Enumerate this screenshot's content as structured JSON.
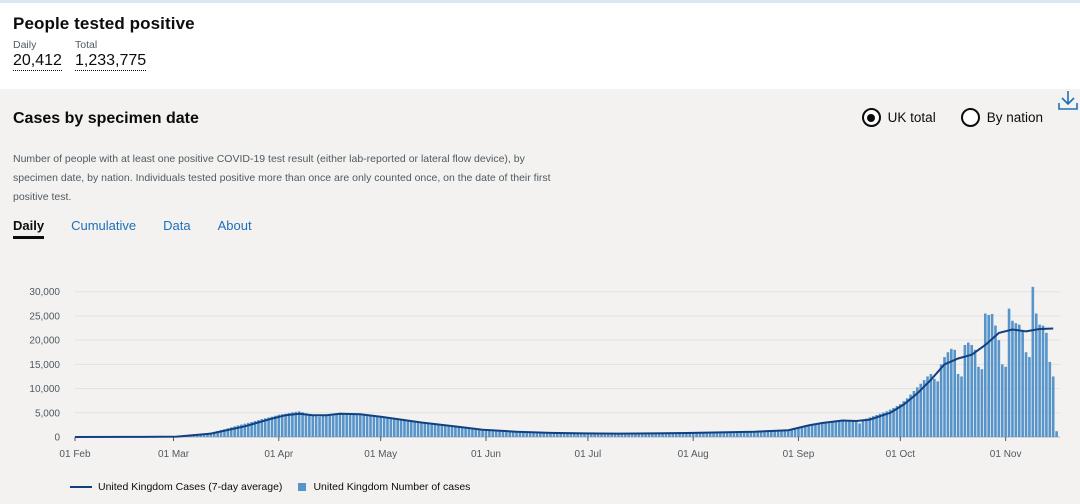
{
  "summary": {
    "title": "People tested positive",
    "daily": {
      "label": "Daily",
      "value": "20,412"
    },
    "total": {
      "label": "Total",
      "value": "1,233,775"
    }
  },
  "card": {
    "title": "Cases by specimen date",
    "download_icon": "download-icon",
    "radios": [
      {
        "label": "UK total",
        "checked": true
      },
      {
        "label": "By nation",
        "checked": false
      }
    ],
    "description": "Number of people with at least one positive COVID-19 test result (either lab-reported or lateral flow device), by specimen date, by nation. Individuals tested positive more than once are only counted once, on the date of their first positive test.",
    "tabs": [
      {
        "label": "Daily",
        "active": true
      },
      {
        "label": "Cumulative",
        "active": false
      },
      {
        "label": "Data",
        "active": false
      },
      {
        "label": "About",
        "active": false
      }
    ]
  },
  "colors": {
    "bar": "#5694ca",
    "line": "#12407f",
    "link": "#1d70b8",
    "panel": "#f3f2f1"
  },
  "chart_data": {
    "type": "bar",
    "title": "",
    "xlabel": "",
    "ylabel": "",
    "ylim": [
      0,
      32000
    ],
    "yticks": [
      0,
      5000,
      10000,
      15000,
      20000,
      25000,
      30000
    ],
    "ytick_labels": [
      "0",
      "5,000",
      "10,000",
      "15,000",
      "20,000",
      "25,000",
      "30,000"
    ],
    "x_start": "01 Feb",
    "xticks": [
      {
        "label": "01 Feb",
        "day": 0
      },
      {
        "label": "01 Mar",
        "day": 29
      },
      {
        "label": "01 Apr",
        "day": 60
      },
      {
        "label": "01 May",
        "day": 90
      },
      {
        "label": "01 Jun",
        "day": 121
      },
      {
        "label": "01 Jul",
        "day": 151
      },
      {
        "label": "01 Aug",
        "day": 182
      },
      {
        "label": "01 Sep",
        "day": 213
      },
      {
        "label": "01 Oct",
        "day": 243
      },
      {
        "label": "01 Nov",
        "day": 274
      }
    ],
    "series": [
      {
        "name": "United Kingdom Number of cases",
        "kind": "bar",
        "points": [
          [
            0,
            2
          ],
          [
            5,
            5
          ],
          [
            10,
            8
          ],
          [
            15,
            15
          ],
          [
            20,
            25
          ],
          [
            25,
            40
          ],
          [
            29,
            80
          ],
          [
            33,
            200
          ],
          [
            36,
            400
          ],
          [
            40,
            900
          ],
          [
            44,
            1600
          ],
          [
            48,
            2400
          ],
          [
            52,
            3100
          ],
          [
            55,
            3700
          ],
          [
            58,
            4200
          ],
          [
            60,
            4600
          ],
          [
            62,
            4800
          ],
          [
            64,
            5100
          ],
          [
            66,
            5300
          ],
          [
            68,
            4900
          ],
          [
            70,
            4400
          ],
          [
            72,
            4200
          ],
          [
            74,
            4600
          ],
          [
            76,
            4700
          ],
          [
            78,
            5000
          ],
          [
            80,
            4900
          ],
          [
            82,
            4700
          ],
          [
            84,
            4800
          ],
          [
            86,
            4600
          ],
          [
            88,
            4500
          ],
          [
            90,
            4300
          ],
          [
            92,
            4000
          ],
          [
            94,
            3700
          ],
          [
            96,
            3600
          ],
          [
            98,
            3400
          ],
          [
            100,
            3200
          ],
          [
            102,
            3000
          ],
          [
            104,
            2900
          ],
          [
            106,
            2700
          ],
          [
            108,
            2500
          ],
          [
            110,
            2300
          ],
          [
            112,
            2100
          ],
          [
            114,
            1900
          ],
          [
            116,
            1700
          ],
          [
            118,
            1500
          ],
          [
            120,
            1350
          ],
          [
            123,
            1200
          ],
          [
            126,
            1100
          ],
          [
            129,
            1000
          ],
          [
            132,
            950
          ],
          [
            135,
            900
          ],
          [
            138,
            850
          ],
          [
            141,
            800
          ],
          [
            144,
            780
          ],
          [
            147,
            760
          ],
          [
            150,
            740
          ],
          [
            153,
            720
          ],
          [
            156,
            700
          ],
          [
            159,
            700
          ],
          [
            162,
            700
          ],
          [
            165,
            720
          ],
          [
            168,
            740
          ],
          [
            171,
            760
          ],
          [
            174,
            780
          ],
          [
            177,
            800
          ],
          [
            180,
            850
          ],
          [
            183,
            900
          ],
          [
            186,
            950
          ],
          [
            189,
            1000
          ],
          [
            192,
            1000
          ],
          [
            195,
            1050
          ],
          [
            198,
            1100
          ],
          [
            201,
            1150
          ],
          [
            204,
            1200
          ],
          [
            207,
            1300
          ],
          [
            210,
            1500
          ],
          [
            213,
            1900
          ],
          [
            215,
            2300
          ],
          [
            217,
            2700
          ],
          [
            219,
            2900
          ],
          [
            221,
            3100
          ],
          [
            223,
            3300
          ],
          [
            225,
            3400
          ],
          [
            227,
            3500
          ],
          [
            229,
            3400
          ],
          [
            231,
            2800
          ],
          [
            233,
            3800
          ],
          [
            235,
            4300
          ],
          [
            237,
            4800
          ],
          [
            239,
            5300
          ],
          [
            241,
            6000
          ],
          [
            243,
            6800
          ],
          [
            245,
            8000
          ],
          [
            247,
            9500
          ],
          [
            249,
            11000
          ],
          [
            251,
            12500
          ],
          [
            252,
            13000
          ],
          [
            253,
            12000
          ],
          [
            254,
            11500
          ],
          [
            255,
            15000
          ],
          [
            256,
            16500
          ],
          [
            257,
            17500
          ],
          [
            258,
            18200
          ],
          [
            259,
            18000
          ],
          [
            260,
            13000
          ],
          [
            261,
            12500
          ],
          [
            262,
            19000
          ],
          [
            263,
            19500
          ],
          [
            264,
            19000
          ],
          [
            265,
            18000
          ],
          [
            266,
            14500
          ],
          [
            267,
            14000
          ],
          [
            268,
            25500
          ],
          [
            269,
            25200
          ],
          [
            270,
            25400
          ],
          [
            271,
            23000
          ],
          [
            272,
            20000
          ],
          [
            273,
            15000
          ],
          [
            274,
            14500
          ],
          [
            275,
            26500
          ],
          [
            276,
            24000
          ],
          [
            277,
            23500
          ],
          [
            278,
            23200
          ],
          [
            279,
            22000
          ],
          [
            280,
            17500
          ],
          [
            281,
            16500
          ],
          [
            282,
            31000
          ],
          [
            283,
            25500
          ],
          [
            284,
            23200
          ],
          [
            285,
            23000
          ],
          [
            286,
            21500
          ],
          [
            287,
            15500
          ],
          [
            288,
            12500
          ],
          [
            289,
            1200
          ]
        ]
      },
      {
        "name": "United Kingdom Cases (7-day average)",
        "kind": "line",
        "points": [
          [
            0,
            0
          ],
          [
            20,
            30
          ],
          [
            30,
            80
          ],
          [
            40,
            700
          ],
          [
            50,
            2200
          ],
          [
            58,
            3800
          ],
          [
            62,
            4500
          ],
          [
            66,
            4800
          ],
          [
            70,
            4500
          ],
          [
            74,
            4500
          ],
          [
            78,
            4800
          ],
          [
            84,
            4700
          ],
          [
            90,
            4200
          ],
          [
            96,
            3600
          ],
          [
            102,
            3000
          ],
          [
            108,
            2500
          ],
          [
            114,
            2000
          ],
          [
            120,
            1500
          ],
          [
            130,
            1100
          ],
          [
            140,
            850
          ],
          [
            150,
            750
          ],
          [
            160,
            700
          ],
          [
            170,
            740
          ],
          [
            180,
            820
          ],
          [
            190,
            950
          ],
          [
            200,
            1100
          ],
          [
            210,
            1400
          ],
          [
            216,
            2400
          ],
          [
            220,
            2900
          ],
          [
            226,
            3400
          ],
          [
            230,
            3300
          ],
          [
            234,
            3600
          ],
          [
            240,
            5000
          ],
          [
            244,
            6700
          ],
          [
            248,
            9000
          ],
          [
            252,
            11800
          ],
          [
            256,
            15000
          ],
          [
            260,
            16200
          ],
          [
            264,
            17000
          ],
          [
            268,
            19000
          ],
          [
            272,
            21500
          ],
          [
            276,
            22200
          ],
          [
            280,
            21800
          ],
          [
            284,
            22300
          ],
          [
            288,
            22400
          ]
        ]
      }
    ],
    "legend": [
      {
        "label": "United Kingdom Cases (7-day average)",
        "kind": "line"
      },
      {
        "label": "United Kingdom Number of cases",
        "kind": "bar"
      }
    ]
  }
}
